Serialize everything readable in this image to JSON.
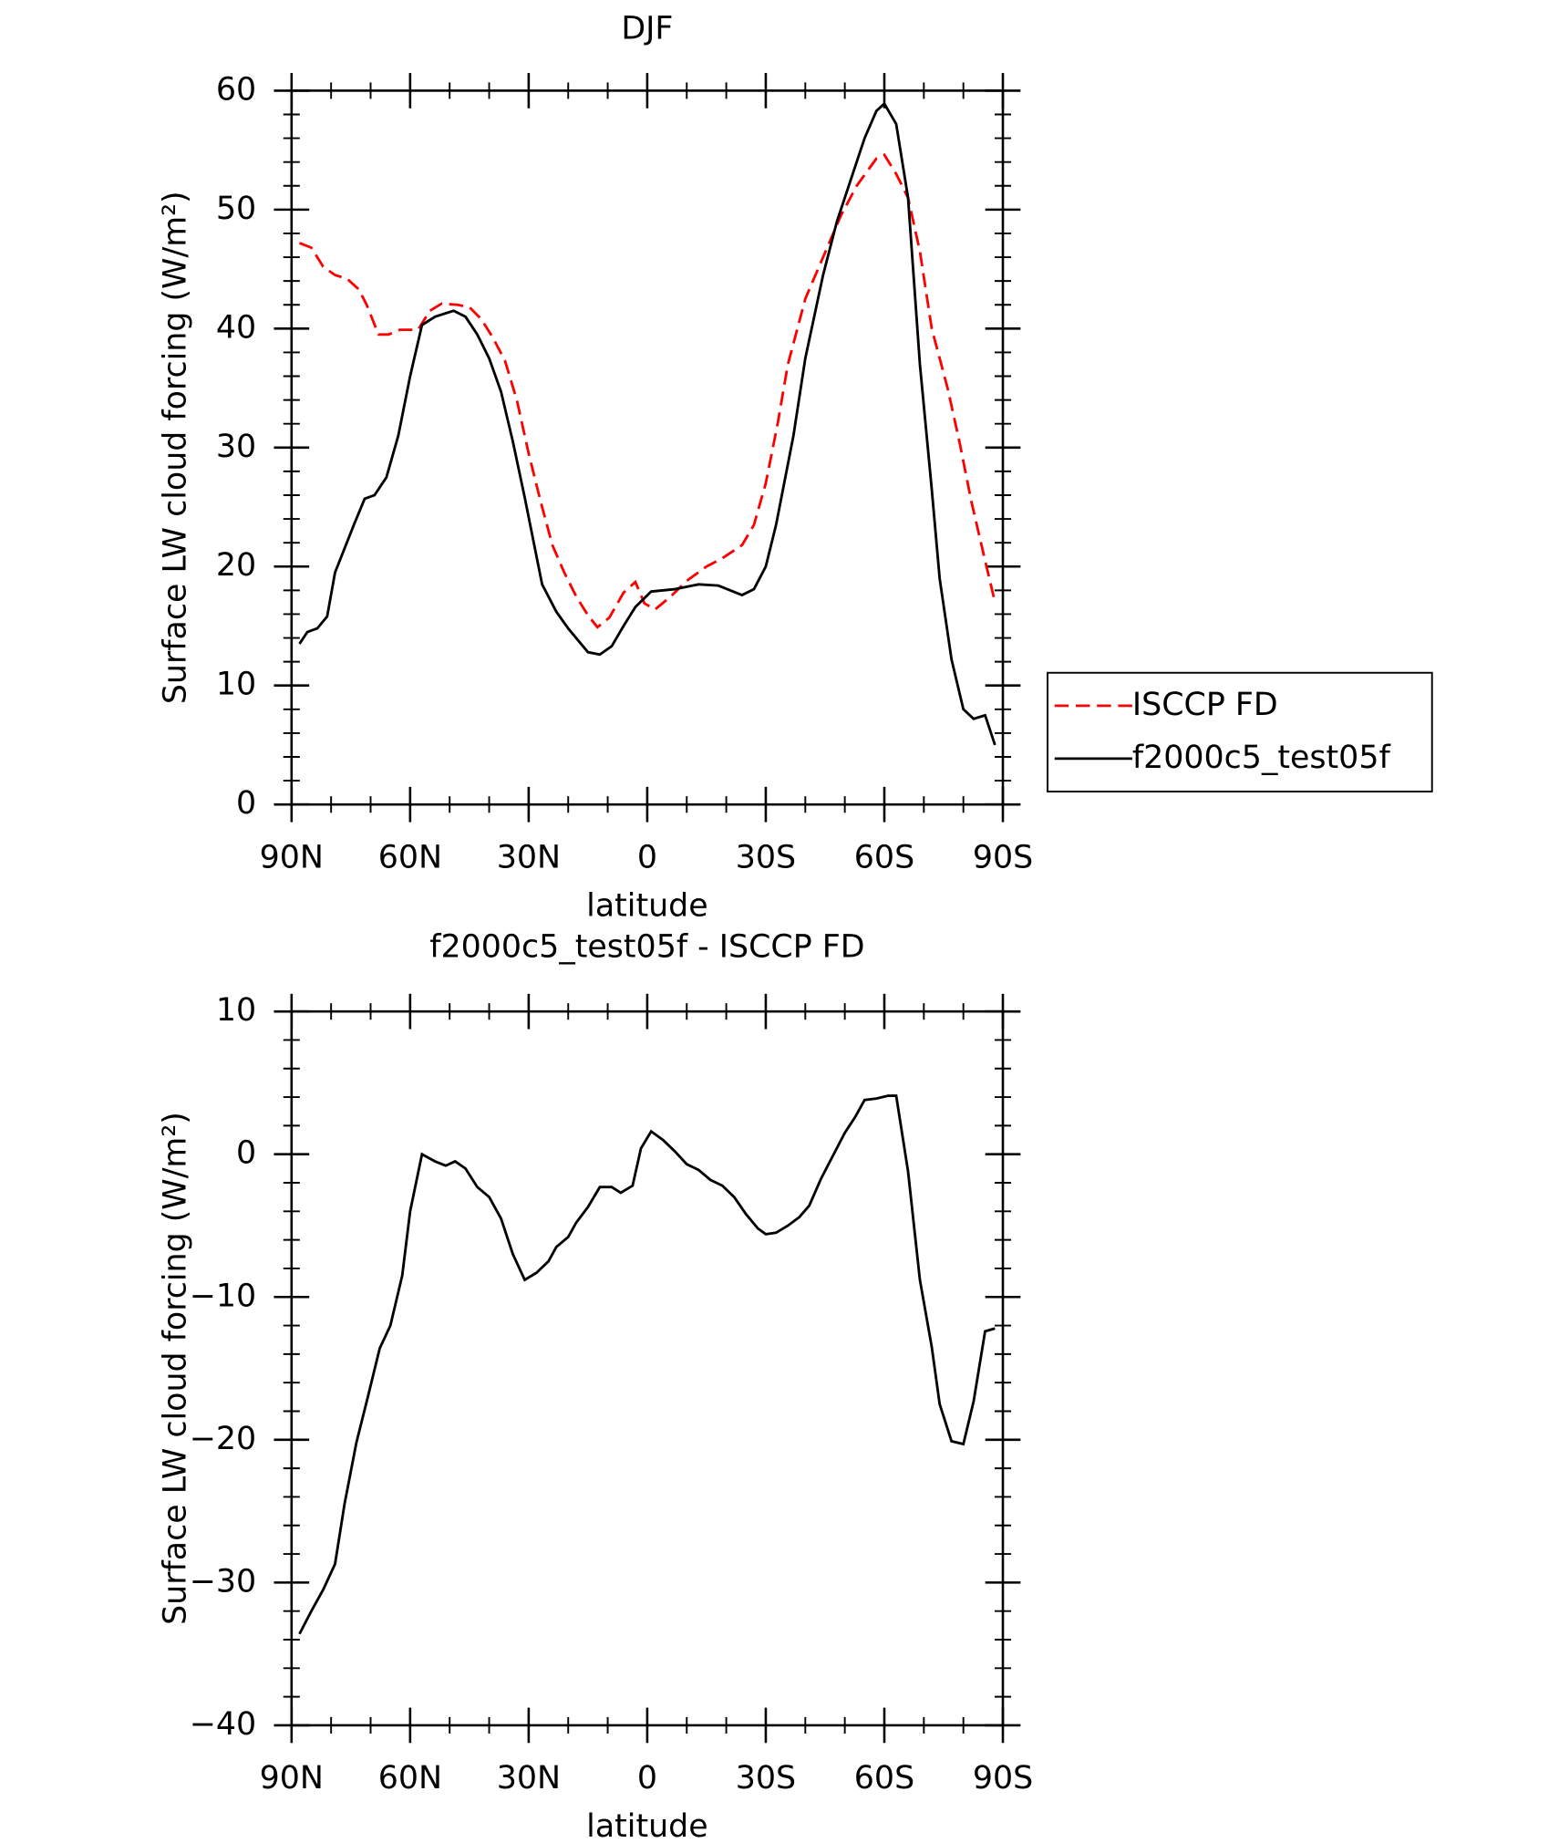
{
  "chart_data": [
    {
      "type": "line",
      "title": "DJF",
      "xlabel": "latitude",
      "ylabel": "Surface LW cloud forcing (W/m²)",
      "xlim": [
        90,
        -90
      ],
      "xticks": [
        {
          "value": 90,
          "label": "90N"
        },
        {
          "value": 60,
          "label": "60N"
        },
        {
          "value": 30,
          "label": "30N"
        },
        0,
        {
          "value": -30,
          "label": "30S"
        },
        {
          "value": -60,
          "label": "60S"
        },
        {
          "value": -90,
          "label": "90S"
        }
      ],
      "ylim": [
        0,
        60
      ],
      "yticks": [
        0,
        10,
        20,
        30,
        40,
        50,
        60
      ],
      "legend": "right",
      "series": [
        {
          "name": "ISCCP FD",
          "color": "#ff0000",
          "dash": "dashed",
          "x": [
            88,
            85,
            82,
            79,
            76,
            73,
            71,
            68,
            65.5,
            62.6,
            58,
            55,
            52,
            48,
            45,
            42,
            39,
            36,
            33,
            30,
            27,
            24,
            21,
            18,
            15,
            12.6,
            9.6,
            6,
            3,
            0.7,
            -2,
            -6,
            -10,
            -15,
            -19,
            -24,
            -27,
            -30,
            -33,
            -35.6,
            -40,
            -44.5,
            -49,
            -53,
            -58,
            -60,
            -63,
            -66,
            -69,
            -72,
            -76,
            -79,
            -82,
            -85.5,
            -88
          ],
          "values": [
            47.2,
            46.8,
            45.2,
            44.5,
            44.2,
            43.3,
            42,
            39.5,
            39.5,
            39.9,
            39.9,
            41.5,
            42.1,
            42,
            41.8,
            40.8,
            39.2,
            37.3,
            34,
            29.5,
            25.5,
            21.8,
            19.5,
            17.5,
            15.9,
            14.9,
            15.7,
            17.8,
            18.7,
            16.9,
            16.4,
            17.5,
            18.8,
            20,
            20.7,
            21.8,
            23.5,
            27,
            32,
            37,
            42.5,
            46,
            49.5,
            52,
            54.3,
            54.6,
            53,
            51,
            46.5,
            40,
            35,
            30.5,
            25.5,
            20.5,
            17
          ]
        },
        {
          "name": "f2000c5_test05f",
          "color": "#000000",
          "dash": "solid",
          "x": [
            88,
            86,
            83.5,
            81,
            79,
            74,
            71.5,
            69,
            66,
            63,
            60,
            57,
            53.7,
            49,
            46,
            43,
            40,
            37,
            34,
            31,
            26.6,
            23,
            20,
            15,
            12,
            9,
            6,
            3,
            -1,
            -7,
            -13,
            -18,
            -24,
            -27,
            -30,
            -32.6,
            -37,
            -40,
            -44.5,
            -48,
            -52,
            -55,
            -58,
            -60,
            -63,
            -66,
            -69,
            -72,
            -74,
            -77,
            -80,
            -82.6,
            -85.5,
            -88
          ],
          "values": [
            13.5,
            14.5,
            14.8,
            15.8,
            19.5,
            23.7,
            25.7,
            26,
            27.5,
            31,
            36,
            40.3,
            41,
            41.5,
            41,
            39.5,
            37.5,
            34.7,
            30.5,
            25.8,
            18.5,
            16.2,
            14.8,
            12.8,
            12.6,
            13.3,
            15,
            16.6,
            17.9,
            18.1,
            18.5,
            18.4,
            17.6,
            18.1,
            20,
            23.5,
            31,
            37.5,
            44.5,
            49,
            53,
            56,
            58.3,
            58.9,
            57.2,
            51,
            37,
            26.5,
            19,
            12.2,
            8,
            7.2,
            7.5,
            5
          ]
        }
      ]
    },
    {
      "type": "line",
      "title": "f2000c5_test05f - ISCCP FD",
      "xlabel": "latitude",
      "ylabel": "Surface LW cloud forcing (W/m²)",
      "xlim": [
        90,
        -90
      ],
      "xticks": [
        {
          "value": 90,
          "label": "90N"
        },
        {
          "value": 60,
          "label": "60N"
        },
        {
          "value": 30,
          "label": "30N"
        },
        0,
        {
          "value": -30,
          "label": "30S"
        },
        {
          "value": -60,
          "label": "60S"
        },
        {
          "value": -90,
          "label": "90S"
        }
      ],
      "ylim": [
        -40,
        10
      ],
      "yticks": [
        {
          "value": -40,
          "label": "−40"
        },
        {
          "value": -30,
          "label": "−30"
        },
        {
          "value": -20,
          "label": "−20"
        },
        {
          "value": -10,
          "label": "−10"
        },
        0,
        10
      ],
      "series": [
        {
          "color": "#000000",
          "dash": "solid",
          "x": [
            88,
            85,
            82,
            79,
            76.6,
            73.6,
            70.7,
            67.7,
            65,
            62,
            60,
            57,
            53.7,
            51,
            48.6,
            46,
            43,
            40,
            37,
            34,
            31,
            28,
            25,
            23,
            20,
            18,
            15,
            12,
            9,
            6.7,
            3.7,
            1.6,
            -1,
            -4,
            -7,
            -10,
            -13,
            -16,
            -19,
            -22,
            -25,
            -28,
            -30,
            -32.6,
            -35.6,
            -38.5,
            -41,
            -44,
            -47,
            -50,
            -52.6,
            -55,
            -58,
            -61,
            -63,
            -66,
            -69,
            -72,
            -74,
            -77,
            -80,
            -82.6,
            -85.5,
            -88
          ],
          "values": [
            -33.6,
            -32,
            -30.5,
            -28.7,
            -24.5,
            -20.2,
            -17,
            -13.6,
            -12,
            -8.5,
            -4,
            0,
            -0.5,
            -0.8,
            -0.5,
            -1,
            -2.3,
            -3,
            -4.5,
            -7,
            -8.8,
            -8.3,
            -7.5,
            -6.5,
            -5.8,
            -4.8,
            -3.7,
            -2.3,
            -2.3,
            -2.7,
            -2.2,
            0.4,
            1.6,
            1,
            0.2,
            -0.7,
            -1.1,
            -1.8,
            -2.2,
            -3,
            -4.2,
            -5.2,
            -5.6,
            -5.5,
            -5,
            -4.4,
            -3.6,
            -1.7,
            -0.1,
            1.5,
            2.6,
            3.8,
            3.9,
            4.1,
            4.1,
            -1.2,
            -8.8,
            -13.5,
            -17.5,
            -20.1,
            -20.3,
            -17.3,
            -12.4,
            -12.2
          ]
        }
      ]
    }
  ]
}
